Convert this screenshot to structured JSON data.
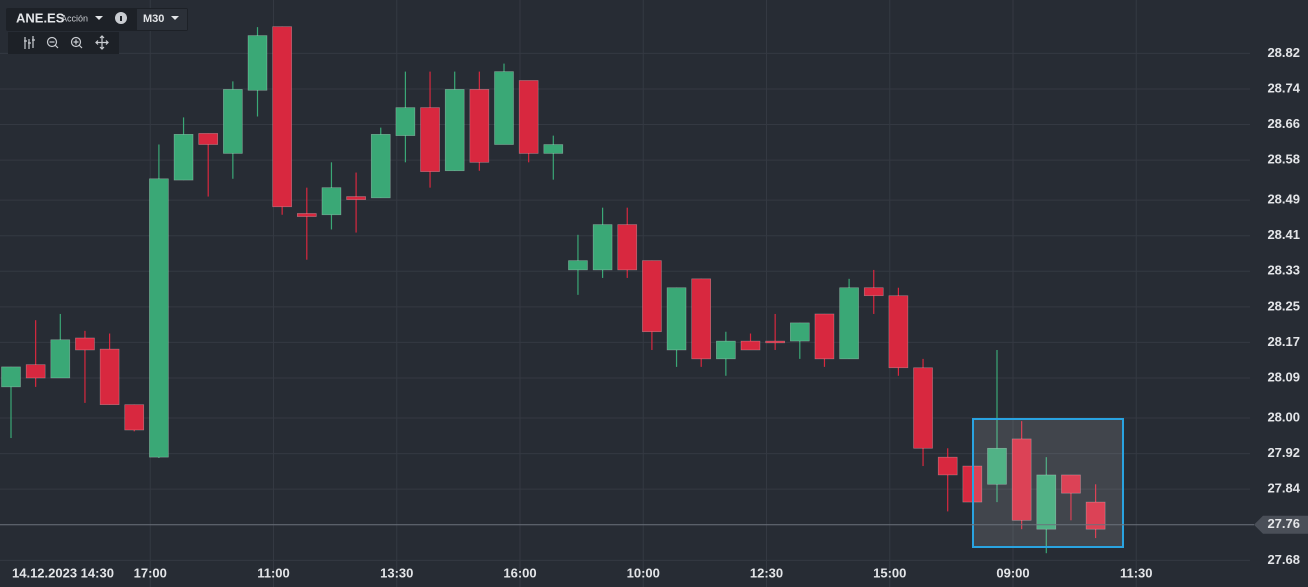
{
  "toolbar": {
    "symbol": "ANE.ES",
    "asset_type": "Acción",
    "timeframe": "M30"
  },
  "chart_data": {
    "type": "candlestick",
    "categories": [
      "14.12.2023 14:30",
      null,
      null,
      null,
      null,
      "17:00",
      null,
      null,
      null,
      null,
      "11:00",
      null,
      null,
      null,
      null,
      "13:30",
      null,
      null,
      null,
      null,
      "16:00",
      null,
      null,
      null,
      null,
      "10:00",
      null,
      null,
      null,
      null,
      "12:30",
      null,
      null,
      null,
      null,
      "15:00",
      null,
      null,
      null,
      null,
      "09:00",
      null,
      null,
      null,
      null,
      "11:30"
    ],
    "open": [
      28.07,
      28.12,
      28.09,
      28.18,
      28.155,
      28.03,
      27.912,
      28.535,
      28.64,
      28.595,
      28.737,
      28.88,
      28.46,
      28.457,
      28.498,
      28.495,
      28.635,
      28.698,
      28.556,
      28.739,
      28.615,
      28.759,
      28.595,
      28.333,
      28.333,
      28.435,
      28.354,
      28.153,
      28.313,
      28.133,
      28.173,
      28.173,
      28.173,
      28.234,
      28.133,
      28.293,
      28.275,
      28.113,
      27.912,
      27.892,
      27.851,
      27.953,
      27.75,
      27.872,
      27.811,
      null
    ],
    "high": [
      28.115,
      28.22,
      28.234,
      28.196,
      28.19,
      28.03,
      28.615,
      28.676,
      28.64,
      28.757,
      28.879,
      28.88,
      28.518,
      28.575,
      28.552,
      28.653,
      28.779,
      28.779,
      28.779,
      28.779,
      28.797,
      28.759,
      28.635,
      28.412,
      28.473,
      28.473,
      28.354,
      28.293,
      28.313,
      28.194,
      28.19,
      28.234,
      28.214,
      28.234,
      28.313,
      28.333,
      28.293,
      28.133,
      27.932,
      27.892,
      28.153,
      27.993,
      27.912,
      27.872,
      27.851,
      null
    ],
    "low": [
      27.955,
      28.07,
      28.09,
      28.034,
      28.03,
      27.97,
      27.91,
      28.535,
      28.498,
      28.538,
      28.678,
      28.457,
      28.356,
      28.424,
      28.417,
      28.495,
      28.575,
      28.518,
      28.556,
      28.556,
      28.615,
      28.575,
      28.536,
      28.277,
      28.315,
      28.315,
      28.153,
      28.115,
      28.115,
      28.095,
      28.153,
      28.153,
      28.133,
      28.115,
      28.133,
      28.234,
      28.095,
      27.892,
      27.79,
      27.811,
      27.811,
      27.75,
      27.696,
      27.77,
      27.73,
      null
    ],
    "close": [
      28.115,
      28.09,
      28.176,
      28.153,
      28.03,
      27.973,
      28.538,
      28.638,
      28.615,
      28.739,
      28.86,
      28.475,
      28.453,
      28.518,
      28.491,
      28.638,
      28.698,
      28.554,
      28.739,
      28.575,
      28.779,
      28.595,
      28.615,
      28.354,
      28.435,
      28.333,
      28.194,
      28.293,
      28.133,
      28.173,
      28.153,
      28.169,
      28.214,
      28.133,
      28.293,
      28.275,
      28.113,
      27.932,
      27.872,
      27.811,
      27.932,
      27.77,
      27.872,
      27.831,
      27.75,
      null
    ],
    "up_color": "#3aa876",
    "down_color": "#d8283f",
    "ylim": [
      27.62,
      28.94
    ],
    "yticks": [
      28.82,
      28.74,
      28.66,
      28.58,
      28.49,
      28.41,
      28.33,
      28.25,
      28.17,
      28.09,
      {
        "value": 28.0,
        "label": "28.00"
      },
      27.92,
      27.84,
      27.68
    ],
    "last_price": 27.76,
    "grid": true
  }
}
